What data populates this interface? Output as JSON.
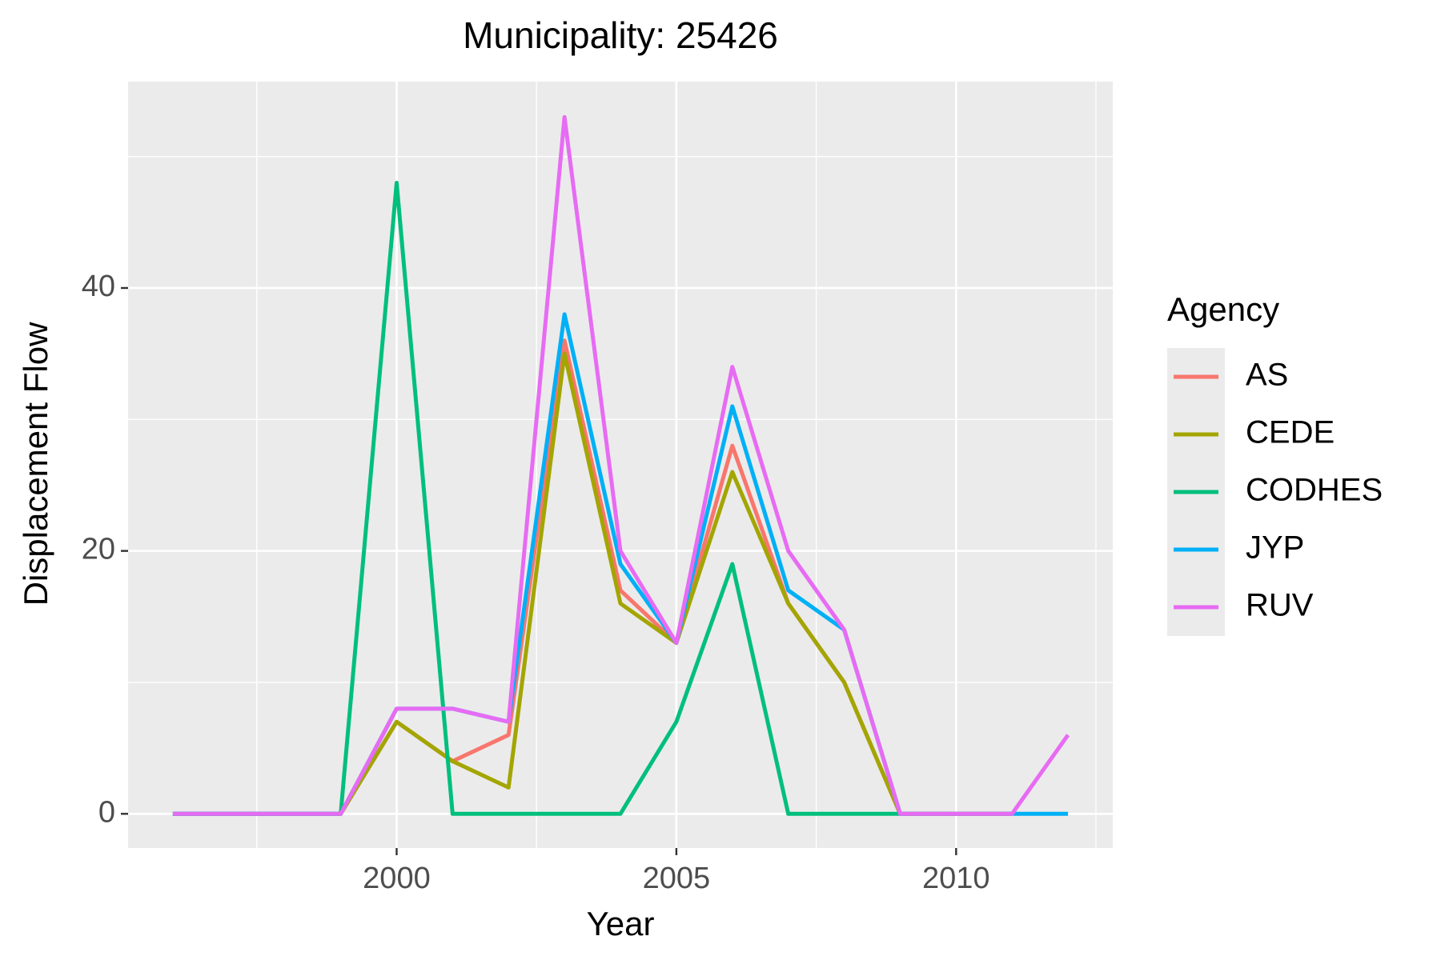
{
  "chart_data": {
    "type": "line",
    "title": "Municipality: 25426",
    "x_label": "Year",
    "y_label": "Displacement Flow",
    "legend_title": "Agency",
    "x": [
      1996,
      1997,
      1998,
      1999,
      2000,
      2001,
      2002,
      2003,
      2004,
      2005,
      2006,
      2007,
      2008,
      2009,
      2010,
      2011,
      2012
    ],
    "series": [
      {
        "name": "AS",
        "color": "#F8766D",
        "values": [
          0,
          0,
          0,
          0,
          7,
          4,
          6,
          36,
          17,
          13,
          28,
          16,
          10,
          0,
          0,
          0,
          null
        ]
      },
      {
        "name": "CEDE",
        "color": "#A3A500",
        "values": [
          0,
          0,
          0,
          0,
          7,
          4,
          2,
          35,
          16,
          13,
          26,
          16,
          10,
          0,
          0,
          0,
          null
        ]
      },
      {
        "name": "CODHES",
        "color": "#00BF7D",
        "values": [
          0,
          0,
          0,
          0,
          48,
          0,
          0,
          0,
          0,
          7,
          19,
          0,
          0,
          0,
          null,
          null,
          null
        ]
      },
      {
        "name": "JYP",
        "color": "#00B0F6",
        "values": [
          0,
          0,
          0,
          0,
          8,
          8,
          7,
          38,
          19,
          13,
          31,
          17,
          14,
          0,
          0,
          0,
          0
        ]
      },
      {
        "name": "RUV",
        "color": "#E76BF3",
        "values": [
          0,
          0,
          0,
          0,
          8,
          8,
          7,
          53,
          20,
          13,
          34,
          20,
          14,
          0,
          0,
          0,
          6
        ]
      }
    ],
    "xlim": [
      1995.2,
      2012.8
    ],
    "ylim": [
      -2.6,
      55.7
    ],
    "xticks": [
      2000,
      2005,
      2010
    ],
    "yticks": [
      0,
      20,
      40
    ],
    "grid": true,
    "legend": "right"
  }
}
